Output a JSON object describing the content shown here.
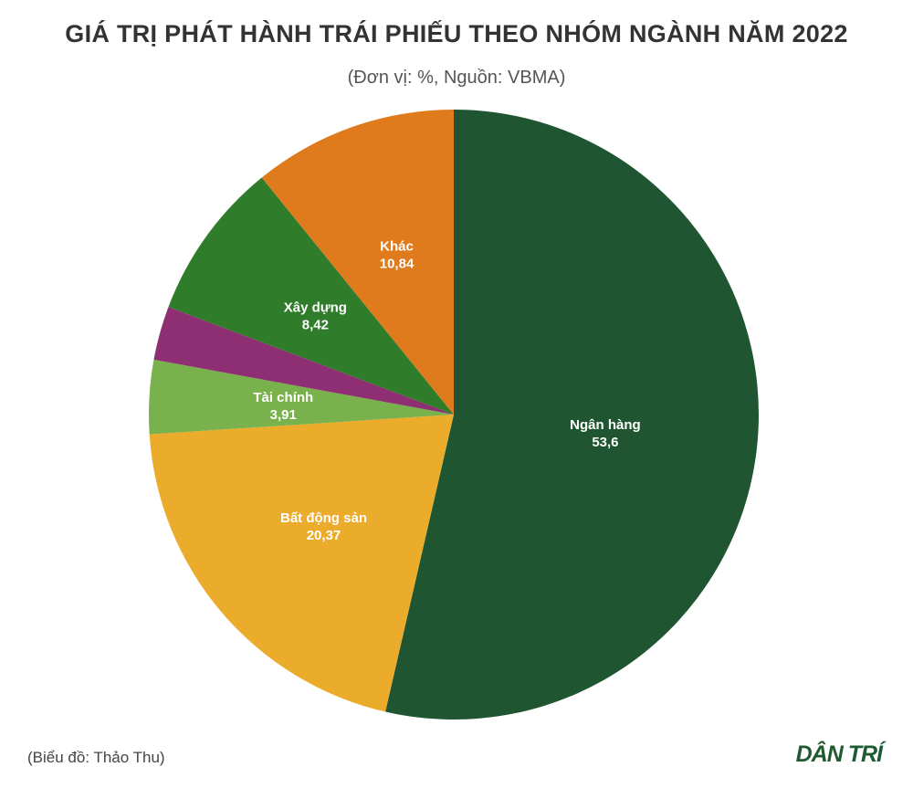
{
  "chart_data": {
    "type": "pie",
    "title": "GIÁ TRỊ PHÁT HÀNH TRÁI PHIẾU THEO NHÓM NGÀNH NĂM 2022",
    "subtitle": "(Đơn vị: %, Nguồn: VBMA)",
    "slices": [
      {
        "label": "Ngân hàng",
        "value": 53.6,
        "display": "53,6",
        "color": "#1f5631"
      },
      {
        "label": "Bất động sản",
        "value": 20.37,
        "display": "20,37",
        "color": "#ebab2b"
      },
      {
        "label": "Tài chính",
        "value": 3.91,
        "display": "3,91",
        "color": "#79b14d"
      },
      {
        "label": "",
        "value": 2.86,
        "display": "",
        "color": "#8e2f73"
      },
      {
        "label": "Xây dựng",
        "value": 8.42,
        "display": "8,42",
        "color": "#2f7d2a"
      },
      {
        "label": "Khác",
        "value": 10.84,
        "display": "10,84",
        "color": "#e07b1d"
      }
    ]
  },
  "footer": {
    "credit": "(Biểu đồ: Thảo Thu)",
    "logo": "DÂN TRÍ"
  }
}
